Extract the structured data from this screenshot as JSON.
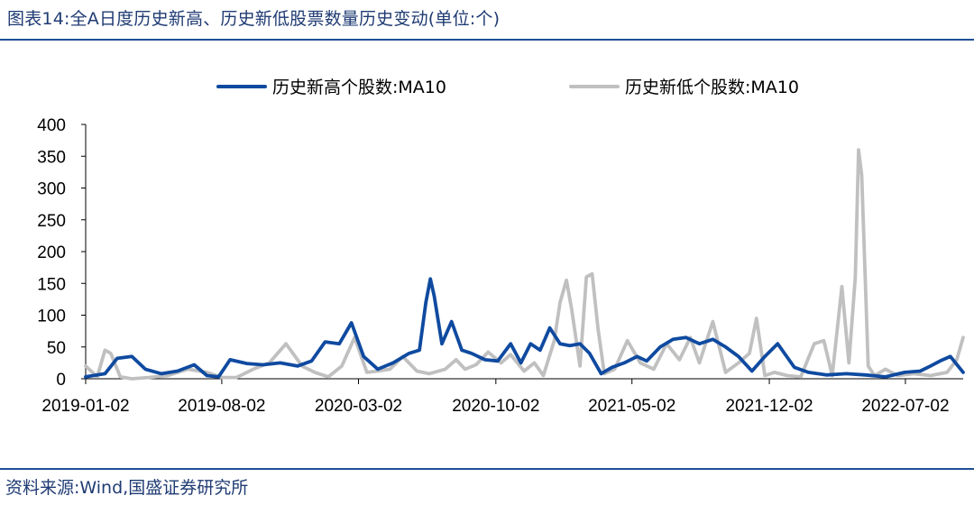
{
  "header": {
    "title": "图表14:全A日度历史新高、历史新低股票数量历史变动(单位:个)"
  },
  "footer": {
    "source": "资料来源:Wind,国盛证券研究所"
  },
  "chart_data": {
    "type": "line",
    "ylim": [
      0,
      400
    ],
    "yticks": [
      "0",
      "50",
      "100",
      "150",
      "200",
      "250",
      "300",
      "350",
      "400"
    ],
    "xtick_labels": [
      "2019-01-02",
      "2019-08-02",
      "2020-03-02",
      "2020-10-02",
      "2021-05-02",
      "2021-12-02",
      "2022-07-02"
    ],
    "legend": "top",
    "colors": {
      "series_high": "#0f4aa0",
      "series_low": "#c0c0c0",
      "axis": "#000000"
    },
    "series": [
      {
        "name": "历史新高个股数:MA10",
        "color": "#0f4aa0",
        "x": [
          "2019-01-02",
          "2019-02-01",
          "2019-02-20",
          "2019-03-15",
          "2019-04-05",
          "2019-04-30",
          "2019-05-25",
          "2019-06-20",
          "2019-07-10",
          "2019-07-28",
          "2019-08-15",
          "2019-09-10",
          "2019-10-05",
          "2019-11-01",
          "2019-11-28",
          "2019-12-20",
          "2020-01-10",
          "2020-02-01",
          "2020-02-20",
          "2020-03-10",
          "2020-04-01",
          "2020-04-25",
          "2020-05-20",
          "2020-06-05",
          "2020-06-15",
          "2020-06-22",
          "2020-06-28",
          "2020-07-10",
          "2020-07-25",
          "2020-08-10",
          "2020-08-25",
          "2020-09-15",
          "2020-10-05",
          "2020-10-25",
          "2020-11-10",
          "2020-11-25",
          "2020-12-10",
          "2020-12-25",
          "2021-01-10",
          "2021-01-25",
          "2021-02-10",
          "2021-02-25",
          "2021-03-15",
          "2021-04-01",
          "2021-04-20",
          "2021-05-10",
          "2021-05-25",
          "2021-06-15",
          "2021-07-05",
          "2021-07-25",
          "2021-08-15",
          "2021-09-05",
          "2021-09-25",
          "2021-10-15",
          "2021-11-05",
          "2021-11-25",
          "2021-12-15",
          "2022-01-10",
          "2022-02-01",
          "2022-03-01",
          "2022-04-01",
          "2022-05-01",
          "2022-06-01",
          "2022-07-01",
          "2022-07-25",
          "2022-08-10",
          "2022-08-25",
          "2022-09-10",
          "2022-09-30"
        ],
        "values": [
          3,
          8,
          32,
          35,
          15,
          8,
          12,
          22,
          5,
          3,
          30,
          24,
          22,
          25,
          20,
          28,
          58,
          55,
          88,
          35,
          15,
          25,
          40,
          45,
          120,
          157,
          130,
          55,
          90,
          45,
          40,
          30,
          28,
          55,
          25,
          55,
          45,
          80,
          55,
          52,
          55,
          40,
          8,
          18,
          25,
          35,
          28,
          50,
          62,
          65,
          55,
          62,
          50,
          35,
          12,
          35,
          55,
          18,
          10,
          6,
          8,
          6,
          3,
          10,
          12,
          20,
          28,
          35,
          10
        ]
      },
      {
        "name": "历史新低个股数:MA10",
        "color": "#c0c0c0",
        "x": [
          "2019-01-02",
          "2019-01-20",
          "2019-02-01",
          "2019-02-10",
          "2019-02-25",
          "2019-03-15",
          "2019-04-10",
          "2019-05-10",
          "2019-06-10",
          "2019-07-10",
          "2019-08-02",
          "2019-08-25",
          "2019-09-20",
          "2019-10-15",
          "2019-11-10",
          "2019-12-05",
          "2019-12-25",
          "2020-01-15",
          "2020-02-05",
          "2020-02-25",
          "2020-03-15",
          "2020-04-01",
          "2020-04-20",
          "2020-05-10",
          "2020-06-01",
          "2020-06-20",
          "2020-07-15",
          "2020-08-01",
          "2020-08-15",
          "2020-09-01",
          "2020-09-20",
          "2020-10-10",
          "2020-10-25",
          "2020-11-15",
          "2020-12-01",
          "2020-12-15",
          "2021-01-01",
          "2021-01-10",
          "2021-01-20",
          "2021-01-28",
          "2021-02-10",
          "2021-02-20",
          "2021-03-01",
          "2021-03-10",
          "2021-03-20",
          "2021-04-05",
          "2021-04-25",
          "2021-05-15",
          "2021-06-05",
          "2021-06-25",
          "2021-07-15",
          "2021-08-01",
          "2021-08-15",
          "2021-09-05",
          "2021-09-25",
          "2021-10-15",
          "2021-11-01",
          "2021-11-12",
          "2021-11-25",
          "2021-12-10",
          "2021-12-30",
          "2022-01-20",
          "2022-02-10",
          "2022-02-25",
          "2022-03-10",
          "2022-03-25",
          "2022-04-05",
          "2022-04-15",
          "2022-04-20",
          "2022-04-25",
          "2022-05-05",
          "2022-05-15",
          "2022-06-01",
          "2022-06-20",
          "2022-07-15",
          "2022-08-10",
          "2022-09-05",
          "2022-09-20",
          "2022-09-30"
        ],
        "values": [
          20,
          3,
          45,
          40,
          3,
          0,
          2,
          5,
          15,
          10,
          2,
          2,
          15,
          25,
          55,
          20,
          10,
          3,
          20,
          65,
          10,
          12,
          15,
          35,
          12,
          8,
          15,
          30,
          15,
          22,
          42,
          25,
          38,
          12,
          25,
          5,
          60,
          120,
          155,
          110,
          20,
          160,
          165,
          80,
          8,
          15,
          60,
          25,
          15,
          55,
          30,
          65,
          25,
          90,
          10,
          25,
          40,
          95,
          5,
          10,
          5,
          3,
          55,
          60,
          5,
          145,
          25,
          160,
          360,
          320,
          20,
          5,
          15,
          5,
          8,
          5,
          10,
          30,
          65
        ]
      }
    ]
  }
}
